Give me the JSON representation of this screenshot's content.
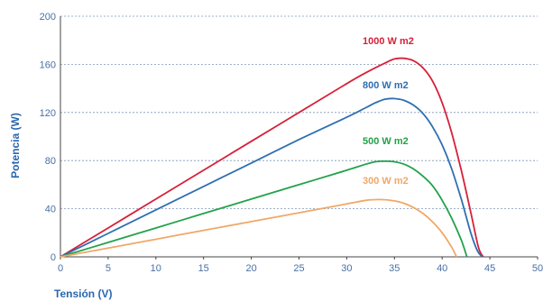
{
  "chart_data": {
    "type": "line",
    "title": "",
    "xlabel": "Tensión (V)",
    "ylabel": "Potencia (W)",
    "xlim": [
      0,
      50
    ],
    "ylim": [
      0,
      200
    ],
    "xticks": [
      0,
      5,
      10,
      15,
      20,
      25,
      30,
      35,
      40,
      45,
      50
    ],
    "yticks": [
      0,
      40,
      80,
      120,
      160,
      200
    ],
    "grid": "horizontal dashed",
    "series": [
      {
        "name": "1000 W m2",
        "color": "#d6213a",
        "x": [
          0,
          5,
          10,
          15,
          20,
          25,
          30,
          32,
          34,
          35,
          36,
          37,
          38,
          39,
          40,
          41,
          42,
          43,
          43.8,
          44.3
        ],
        "y": [
          0,
          24,
          48,
          72,
          96,
          120,
          144,
          153,
          161,
          164.5,
          165,
          163,
          157,
          146,
          128,
          103,
          72,
          37,
          8,
          0
        ]
      },
      {
        "name": "800 W m2",
        "color": "#2f6fb0",
        "x": [
          0,
          5,
          10,
          15,
          20,
          25,
          30,
          32,
          33,
          34,
          35,
          36,
          37,
          38,
          39,
          40,
          41,
          42,
          43,
          43.7,
          44.2
        ],
        "y": [
          0,
          19.5,
          39,
          58.5,
          78,
          97.5,
          116,
          124,
          128,
          131,
          131.5,
          130,
          126,
          119,
          108,
          93,
          73,
          48,
          20,
          5,
          0
        ]
      },
      {
        "name": "500 W m2",
        "color": "#22a24a",
        "x": [
          0,
          5,
          10,
          15,
          20,
          25,
          30,
          32,
          33,
          34,
          35,
          36,
          37,
          38,
          39,
          40,
          41,
          42,
          42.6
        ],
        "y": [
          0,
          12,
          24,
          36,
          48,
          60,
          72,
          77,
          79,
          79.5,
          79,
          77,
          73,
          67,
          59,
          47,
          32,
          14,
          0
        ]
      },
      {
        "name": "300 W m2",
        "color": "#f0a868",
        "x": [
          0,
          5,
          10,
          15,
          20,
          25,
          30,
          31,
          32,
          33,
          34,
          35,
          36,
          37,
          38,
          39,
          40,
          41,
          41.5
        ],
        "y": [
          0,
          7.3,
          14.6,
          22,
          29.3,
          36.6,
          44,
          45.5,
          47,
          47.6,
          47.5,
          46.5,
          44.5,
          41,
          36,
          29,
          20,
          8,
          0
        ]
      }
    ]
  }
}
